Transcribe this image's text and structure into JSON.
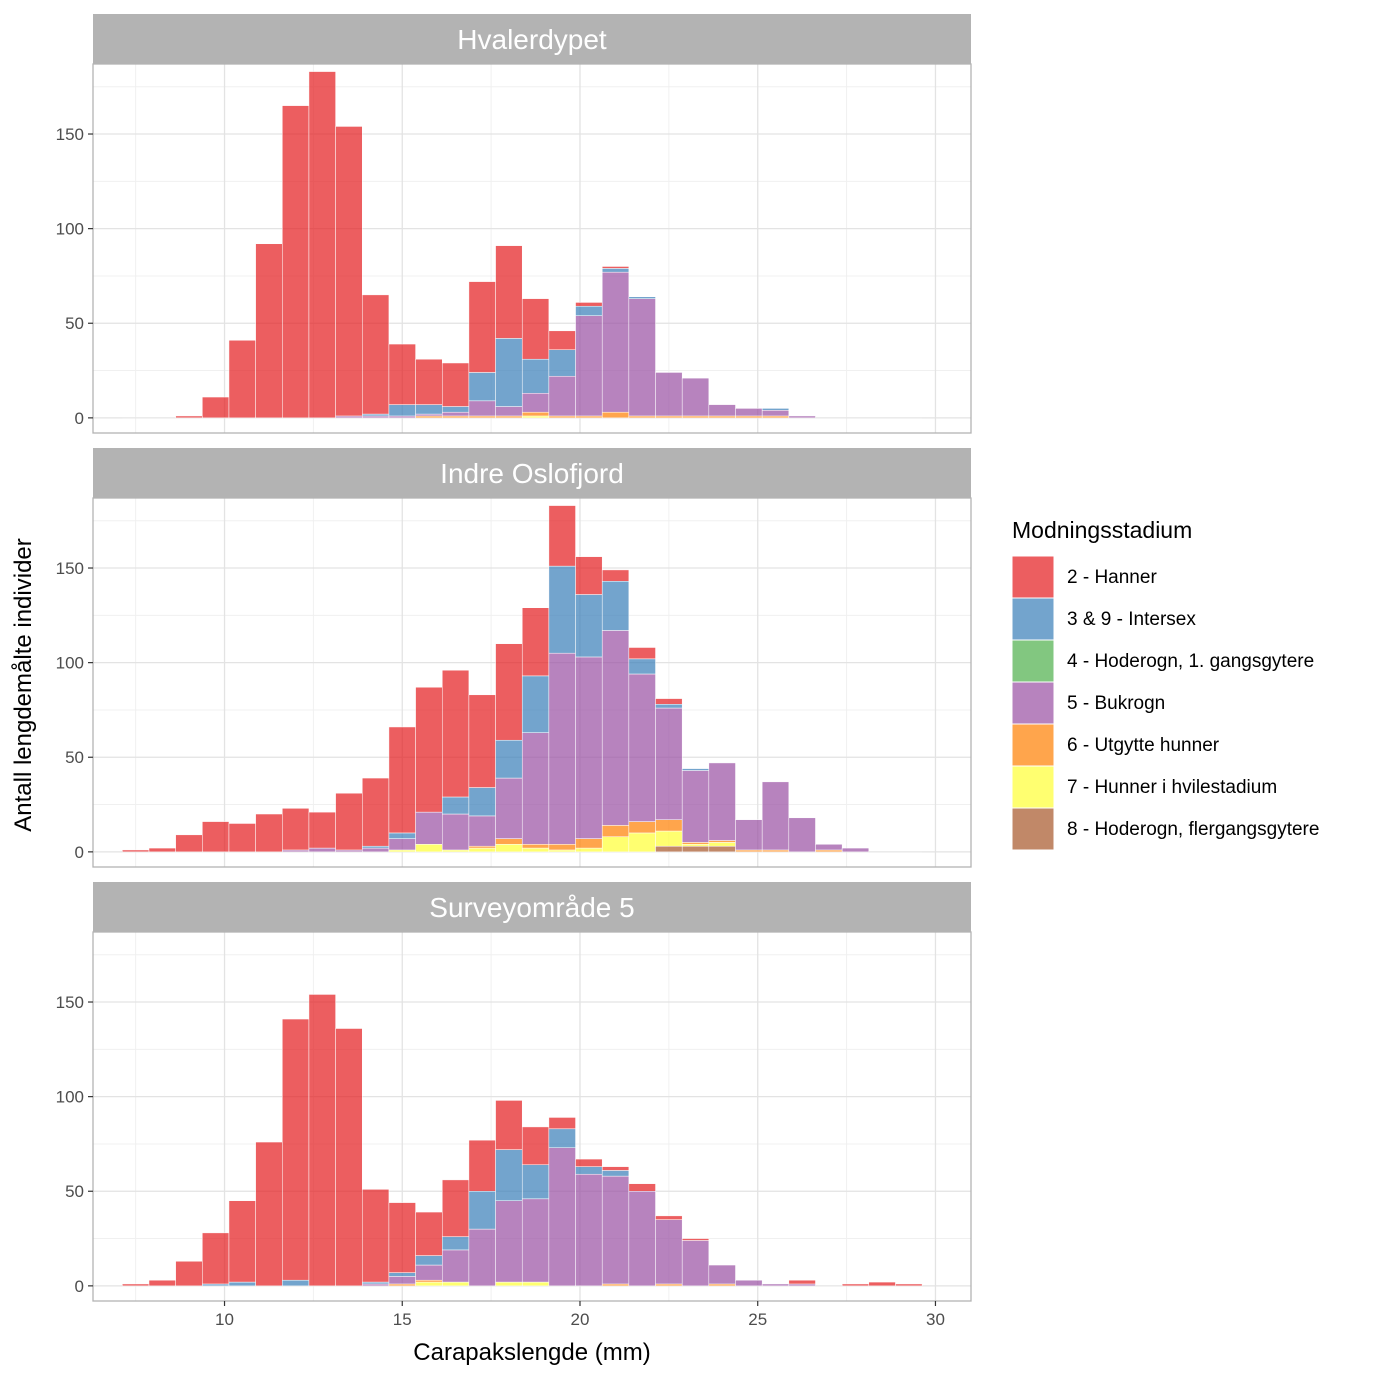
{
  "chart_data": {
    "type": "bar",
    "stacked": true,
    "bin_width": 0.75,
    "xlabel": "Carapakslengde (mm)",
    "ylabel": "Antall lengdemålte individer",
    "xlim": [
      6.3,
      31.0
    ],
    "ylim": [
      -8,
      187
    ],
    "x_ticks": [
      10,
      15,
      20,
      25,
      30
    ],
    "y_ticks": [
      0,
      50,
      100,
      150
    ],
    "legend": {
      "title": "Modningsstadium",
      "position": "right",
      "entries": [
        {
          "key": "s2",
          "label": "2 - Hanner",
          "color": "#E41A1C"
        },
        {
          "key": "s3",
          "label": "3 & 9 - Intersex",
          "color": "#377EB8"
        },
        {
          "key": "s4",
          "label": "4 - Hoderogn, 1. gangsgytere",
          "color": "#4DAF4A"
        },
        {
          "key": "s5",
          "label": "5 - Bukrogn",
          "color": "#984EA3"
        },
        {
          "key": "s6",
          "label": "6 - Utgytte hunner",
          "color": "#FF7F00"
        },
        {
          "key": "s7",
          "label": "7 - Hunner i hvilestadium",
          "color": "#FFFF33"
        },
        {
          "key": "s8",
          "label": "8 - Hoderogn, flergangsgytere",
          "color": "#A65628"
        }
      ]
    },
    "stack_order_bottom_to_top": [
      "s8",
      "s7",
      "s6",
      "s5",
      "s4",
      "s3",
      "s2"
    ],
    "panels": [
      {
        "title": "Hvalerdypet",
        "bins": [
          {
            "x": 7.5,
            "s2": 0
          },
          {
            "x": 8.25,
            "s2": 0
          },
          {
            "x": 9.0,
            "s2": 1
          },
          {
            "x": 9.75,
            "s2": 11
          },
          {
            "x": 10.5,
            "s2": 41
          },
          {
            "x": 11.25,
            "s2": 92
          },
          {
            "x": 12.0,
            "s2": 165
          },
          {
            "x": 12.75,
            "s2": 183
          },
          {
            "x": 13.5,
            "s2": 153,
            "s5": 1
          },
          {
            "x": 14.25,
            "s2": 63,
            "s3": 1,
            "s5": 1
          },
          {
            "x": 15.0,
            "s2": 32,
            "s3": 6,
            "s5": 1
          },
          {
            "x": 15.75,
            "s2": 24,
            "s3": 5,
            "s5": 1,
            "s6": 1
          },
          {
            "x": 16.5,
            "s2": 23,
            "s3": 3,
            "s5": 2,
            "s6": 1
          },
          {
            "x": 17.25,
            "s2": 48,
            "s3": 15,
            "s5": 8,
            "s6": 1
          },
          {
            "x": 18.0,
            "s2": 49,
            "s3": 36,
            "s5": 5,
            "s6": 1
          },
          {
            "x": 18.75,
            "s2": 32,
            "s3": 18,
            "s5": 10,
            "s6": 2,
            "s7": 1
          },
          {
            "x": 19.5,
            "s2": 10,
            "s3": 14,
            "s5": 21,
            "s6": 1
          },
          {
            "x": 20.25,
            "s2": 2,
            "s3": 5,
            "s5": 53,
            "s6": 1
          },
          {
            "x": 21.0,
            "s2": 1,
            "s3": 2,
            "s5": 74,
            "s6": 3
          },
          {
            "x": 21.75,
            "s3": 1,
            "s5": 62,
            "s6": 1
          },
          {
            "x": 22.5,
            "s5": 23,
            "s6": 1
          },
          {
            "x": 23.25,
            "s5": 20,
            "s6": 1
          },
          {
            "x": 24.0,
            "s5": 6,
            "s6": 1
          },
          {
            "x": 24.75,
            "s5": 4,
            "s6": 1
          },
          {
            "x": 25.5,
            "s3": 1,
            "s5": 3,
            "s6": 1
          },
          {
            "x": 26.25,
            "s5": 1
          },
          {
            "x": 27.0,
            "s5": 0
          },
          {
            "x": 27.75,
            "s5": 0
          },
          {
            "x": 28.5,
            "s5": 0
          },
          {
            "x": 29.25,
            "s5": 0
          }
        ]
      },
      {
        "title": "Indre Oslofjord",
        "bins": [
          {
            "x": 7.5,
            "s2": 1
          },
          {
            "x": 8.25,
            "s2": 2
          },
          {
            "x": 9.0,
            "s2": 9
          },
          {
            "x": 9.75,
            "s2": 16
          },
          {
            "x": 10.5,
            "s2": 15
          },
          {
            "x": 11.25,
            "s2": 20
          },
          {
            "x": 12.0,
            "s2": 22,
            "s5": 1
          },
          {
            "x": 12.75,
            "s2": 19,
            "s5": 2
          },
          {
            "x": 13.5,
            "s2": 30,
            "s5": 1
          },
          {
            "x": 14.25,
            "s2": 36,
            "s3": 1,
            "s5": 2
          },
          {
            "x": 15.0,
            "s2": 56,
            "s3": 3,
            "s5": 6,
            "s7": 1
          },
          {
            "x": 15.75,
            "s2": 66,
            "s5": 17,
            "s7": 4
          },
          {
            "x": 16.5,
            "s2": 67,
            "s3": 9,
            "s5": 19,
            "s7": 1
          },
          {
            "x": 17.25,
            "s2": 49,
            "s3": 15,
            "s5": 16,
            "s6": 1,
            "s7": 2
          },
          {
            "x": 18.0,
            "s2": 51,
            "s3": 20,
            "s5": 32,
            "s6": 3,
            "s7": 4
          },
          {
            "x": 18.75,
            "s2": 36,
            "s3": 30,
            "s5": 59,
            "s6": 2,
            "s7": 2
          },
          {
            "x": 19.5,
            "s2": 32,
            "s3": 46,
            "s5": 101,
            "s6": 3,
            "s7": 1
          },
          {
            "x": 20.25,
            "s2": 20,
            "s3": 33,
            "s5": 96,
            "s6": 5,
            "s7": 2
          },
          {
            "x": 21.0,
            "s2": 6,
            "s3": 26,
            "s5": 103,
            "s6": 6,
            "s7": 8
          },
          {
            "x": 21.75,
            "s2": 6,
            "s3": 8,
            "s5": 78,
            "s6": 6,
            "s7": 10
          },
          {
            "x": 22.5,
            "s2": 3,
            "s3": 2,
            "s5": 59,
            "s6": 6,
            "s7": 8,
            "s8": 3
          },
          {
            "x": 23.25,
            "s3": 1,
            "s5": 38,
            "s6": 1,
            "s7": 1,
            "s8": 3
          },
          {
            "x": 24.0,
            "s5": 41,
            "s6": 1,
            "s7": 2,
            "s8": 3
          },
          {
            "x": 24.75,
            "s5": 16,
            "s6": 1
          },
          {
            "x": 25.5,
            "s5": 36,
            "s6": 1
          },
          {
            "x": 26.25,
            "s5": 18
          },
          {
            "x": 27.0,
            "s5": 3,
            "s6": 1
          },
          {
            "x": 27.75,
            "s5": 2
          },
          {
            "x": 28.5,
            "s5": 0
          },
          {
            "x": 29.25,
            "s5": 0
          }
        ]
      },
      {
        "title": "Surveyområde 5",
        "bins": [
          {
            "x": 7.5,
            "s2": 1
          },
          {
            "x": 8.25,
            "s2": 3
          },
          {
            "x": 9.0,
            "s2": 13
          },
          {
            "x": 9.75,
            "s2": 27,
            "s3": 1
          },
          {
            "x": 10.5,
            "s2": 43,
            "s3": 2
          },
          {
            "x": 11.25,
            "s2": 76
          },
          {
            "x": 12.0,
            "s2": 138,
            "s3": 3
          },
          {
            "x": 12.75,
            "s2": 154
          },
          {
            "x": 13.5,
            "s2": 136
          },
          {
            "x": 14.25,
            "s2": 49,
            "s3": 1,
            "s5": 1
          },
          {
            "x": 15.0,
            "s2": 37,
            "s3": 2,
            "s5": 4,
            "s6": 1
          },
          {
            "x": 15.75,
            "s2": 23,
            "s3": 5,
            "s5": 8,
            "s6": 1,
            "s7": 2
          },
          {
            "x": 16.5,
            "s2": 30,
            "s3": 7,
            "s5": 17,
            "s7": 2
          },
          {
            "x": 17.25,
            "s2": 27,
            "s3": 20,
            "s5": 30
          },
          {
            "x": 18.0,
            "s2": 26,
            "s3": 27,
            "s5": 43,
            "s7": 2
          },
          {
            "x": 18.75,
            "s2": 20,
            "s3": 18,
            "s5": 44,
            "s7": 2
          },
          {
            "x": 19.5,
            "s2": 6,
            "s3": 10,
            "s5": 73
          },
          {
            "x": 20.25,
            "s2": 4,
            "s3": 4,
            "s5": 59
          },
          {
            "x": 21.0,
            "s2": 2,
            "s3": 3,
            "s5": 57,
            "s6": 1
          },
          {
            "x": 21.75,
            "s2": 4,
            "s5": 50
          },
          {
            "x": 22.5,
            "s2": 2,
            "s5": 34,
            "s6": 1
          },
          {
            "x": 23.25,
            "s2": 1,
            "s5": 24
          },
          {
            "x": 24.0,
            "s5": 10,
            "s6": 1
          },
          {
            "x": 24.75,
            "s5": 3
          },
          {
            "x": 25.5,
            "s5": 1
          },
          {
            "x": 26.25,
            "s2": 2,
            "s5": 1
          },
          {
            "x": 27.0,
            "s5": 0
          },
          {
            "x": 27.75,
            "s2": 1
          },
          {
            "x": 28.5,
            "s2": 2
          },
          {
            "x": 29.25,
            "s2": 1
          }
        ]
      }
    ]
  }
}
